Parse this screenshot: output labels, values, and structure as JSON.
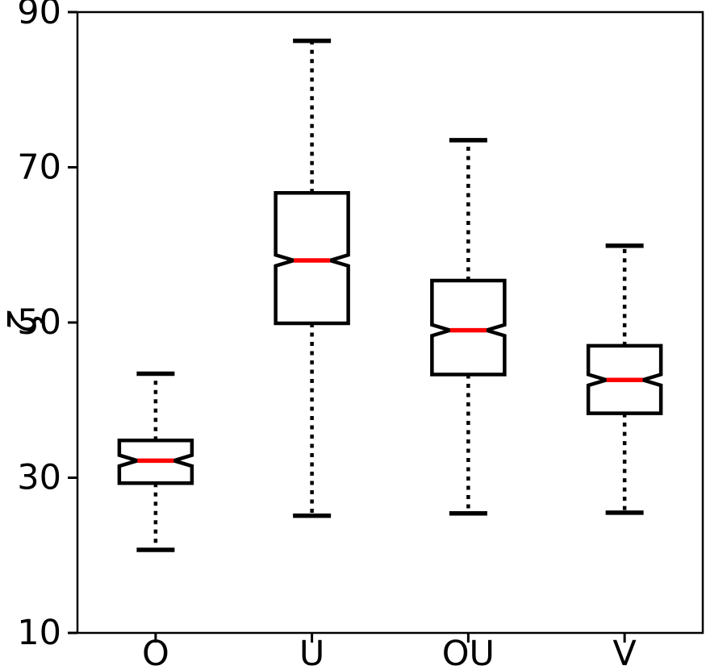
{
  "chart_data": {
    "type": "boxplot",
    "title": "",
    "xlabel": "",
    "ylabel": "ζ",
    "categories": [
      "O",
      "U",
      "OU",
      "V"
    ],
    "ylim": [
      10,
      90
    ],
    "yticks": [
      10,
      30,
      50,
      70,
      90
    ],
    "grid": false,
    "legend": "none",
    "notched": true,
    "whisker_style": "dotted",
    "notch_halfheight_units": 0.7,
    "notch_depth_frac": 0.5,
    "colors": {
      "box": "#000000",
      "median": "#ff0000",
      "whisker": "#000000",
      "background": "#ffffff",
      "text": "#000000"
    },
    "series": [
      {
        "label": "O",
        "whisker_low": 20.7,
        "q1": 29.3,
        "median": 32.2,
        "q3": 34.8,
        "whisker_high": 43.4
      },
      {
        "label": "U",
        "whisker_low": 25.1,
        "q1": 49.9,
        "median": 58.0,
        "q3": 66.7,
        "whisker_high": 86.3
      },
      {
        "label": "OU",
        "whisker_low": 25.4,
        "q1": 43.3,
        "median": 49.0,
        "q3": 55.4,
        "whisker_high": 73.5
      },
      {
        "label": "V",
        "whisker_low": 25.5,
        "q1": 38.3,
        "median": 42.6,
        "q3": 47.0,
        "whisker_high": 59.9
      }
    ]
  }
}
